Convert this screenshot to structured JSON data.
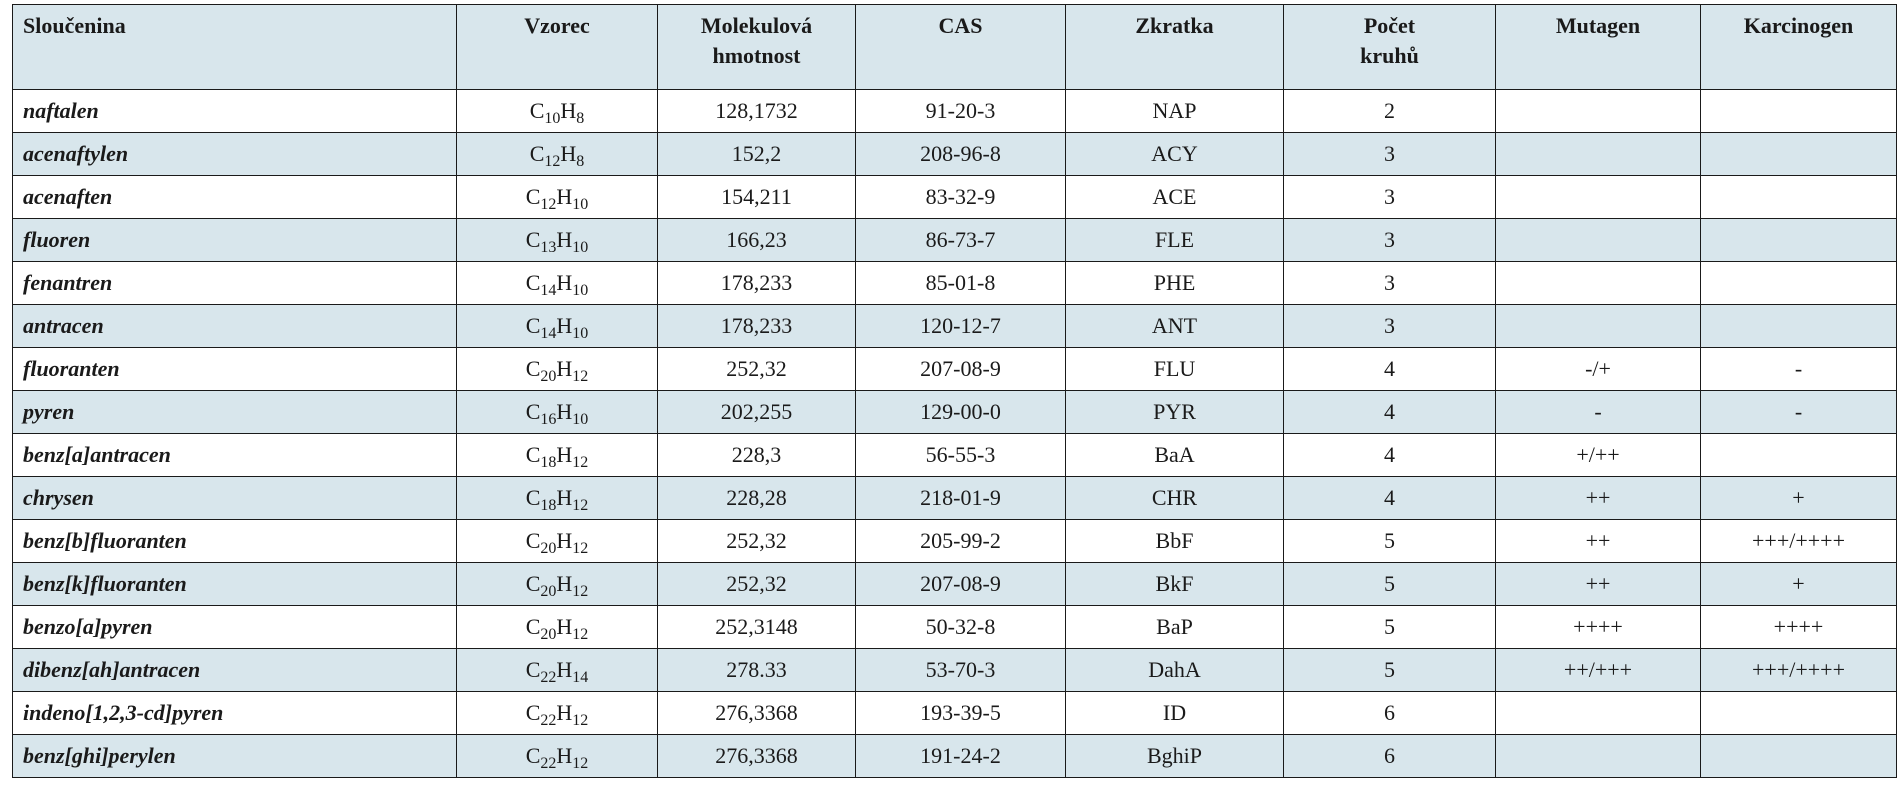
{
  "headers": {
    "compound": "Sloučenina",
    "formula": "Vzorec",
    "mw_line1": "Molekulová",
    "mw_line2": "hmotnost",
    "cas": "CAS",
    "abbr": "Zkratka",
    "rings_line1": "Počet",
    "rings_line2": "kruhů",
    "mutagen": "Mutagen",
    "carcinogen": "Karcinogen"
  },
  "rows": [
    {
      "name": "naftalen",
      "f1": "C",
      "s1": "10",
      "f2": "H",
      "s2": "8",
      "mw": "128,1732",
      "cas": "91-20-3",
      "abbr": "NAP",
      "rings": "2",
      "mut": "",
      "carc": ""
    },
    {
      "name": "acenaftylen",
      "f1": "C",
      "s1": "12",
      "f2": "H",
      "s2": "8",
      "mw": "152,2",
      "cas": "208-96-8",
      "abbr": "ACY",
      "rings": "3",
      "mut": "",
      "carc": ""
    },
    {
      "name": "acenaften",
      "f1": "C",
      "s1": "12",
      "f2": "H",
      "s2": "10",
      "mw": "154,211",
      "cas": "83-32-9",
      "abbr": "ACE",
      "rings": "3",
      "mut": "",
      "carc": ""
    },
    {
      "name": "fluoren",
      "f1": "C",
      "s1": "13",
      "f2": "H",
      "s2": "10",
      "mw": "166,23",
      "cas": "86-73-7",
      "abbr": "FLE",
      "rings": "3",
      "mut": "",
      "carc": ""
    },
    {
      "name": "fenantren",
      "f1": "C",
      "s1": "14",
      "f2": "H",
      "s2": "10",
      "mw": "178,233",
      "cas": "85-01-8",
      "abbr": "PHE",
      "rings": "3",
      "mut": "",
      "carc": ""
    },
    {
      "name": "antracen",
      "f1": "C",
      "s1": "14",
      "f2": "H",
      "s2": "10",
      "mw": "178,233",
      "cas": "120-12-7",
      "abbr": "ANT",
      "rings": "3",
      "mut": "",
      "carc": ""
    },
    {
      "name": "fluoranten",
      "f1": "C",
      "s1": "20",
      "f2": "H",
      "s2": "12",
      "mw": "252,32",
      "cas": "207-08-9",
      "abbr": "FLU",
      "rings": "4",
      "mut": "-/+",
      "carc": "-"
    },
    {
      "name": "pyren",
      "f1": "C",
      "s1": "16",
      "f2": "H",
      "s2": "10",
      "mw": "202,255",
      "cas": "129-00-0",
      "abbr": "PYR",
      "rings": "4",
      "mut": "-",
      "carc": "-"
    },
    {
      "name": "benz[a]antracen",
      "f1": "C",
      "s1": "18",
      "f2": "H",
      "s2": "12",
      "mw": "228,3",
      "cas": "56-55-3",
      "abbr": "BaA",
      "rings": "4",
      "mut": "+/++",
      "carc": ""
    },
    {
      "name": "chrysen",
      "f1": "C",
      "s1": "18",
      "f2": "H",
      "s2": "12",
      "mw": "228,28",
      "cas": "218-01-9",
      "abbr": "CHR",
      "rings": "4",
      "mut": "++",
      "carc": "+"
    },
    {
      "name": "benz[b]fluoranten",
      "f1": "C",
      "s1": "20",
      "f2": "H",
      "s2": "12",
      "mw": "252,32",
      "cas": "205-99-2",
      "abbr": "BbF",
      "rings": "5",
      "mut": "++",
      "carc": "+++/++++"
    },
    {
      "name": "benz[k]fluoranten",
      "f1": "C",
      "s1": "20",
      "f2": "H",
      "s2": "12",
      "mw": "252,32",
      "cas": "207-08-9",
      "abbr": "BkF",
      "rings": "5",
      "mut": "++",
      "carc": "+"
    },
    {
      "name": "benzo[a]pyren",
      "f1": "C",
      "s1": "20",
      "f2": "H",
      "s2": "12",
      "mw": "252,3148",
      "cas": "50-32-8",
      "abbr": "BaP",
      "rings": "5",
      "mut": "++++",
      "carc": "++++"
    },
    {
      "name": "dibenz[ah]antracen",
      "f1": "C",
      "s1": "22",
      "f2": "H",
      "s2": "14",
      "mw": "278.33",
      "cas": "53-70-3",
      "abbr": "DahA",
      "rings": "5",
      "mut": "++/+++",
      "carc": "+++/++++"
    },
    {
      "name": "indeno[1,2,3-cd]pyren",
      "f1": "C",
      "s1": "22",
      "f2": "H",
      "s2": "12",
      "mw": "276,3368",
      "cas": "193-39-5",
      "abbr": "ID",
      "rings": "6",
      "mut": "",
      "carc": ""
    },
    {
      "name": "benz[ghi]perylen",
      "f1": "C",
      "s1": "22",
      "f2": "H",
      "s2": "12",
      "mw": "276,3368",
      "cas": "191-24-2",
      "abbr": "BghiP",
      "rings": "6",
      "mut": "",
      "carc": ""
    }
  ]
}
